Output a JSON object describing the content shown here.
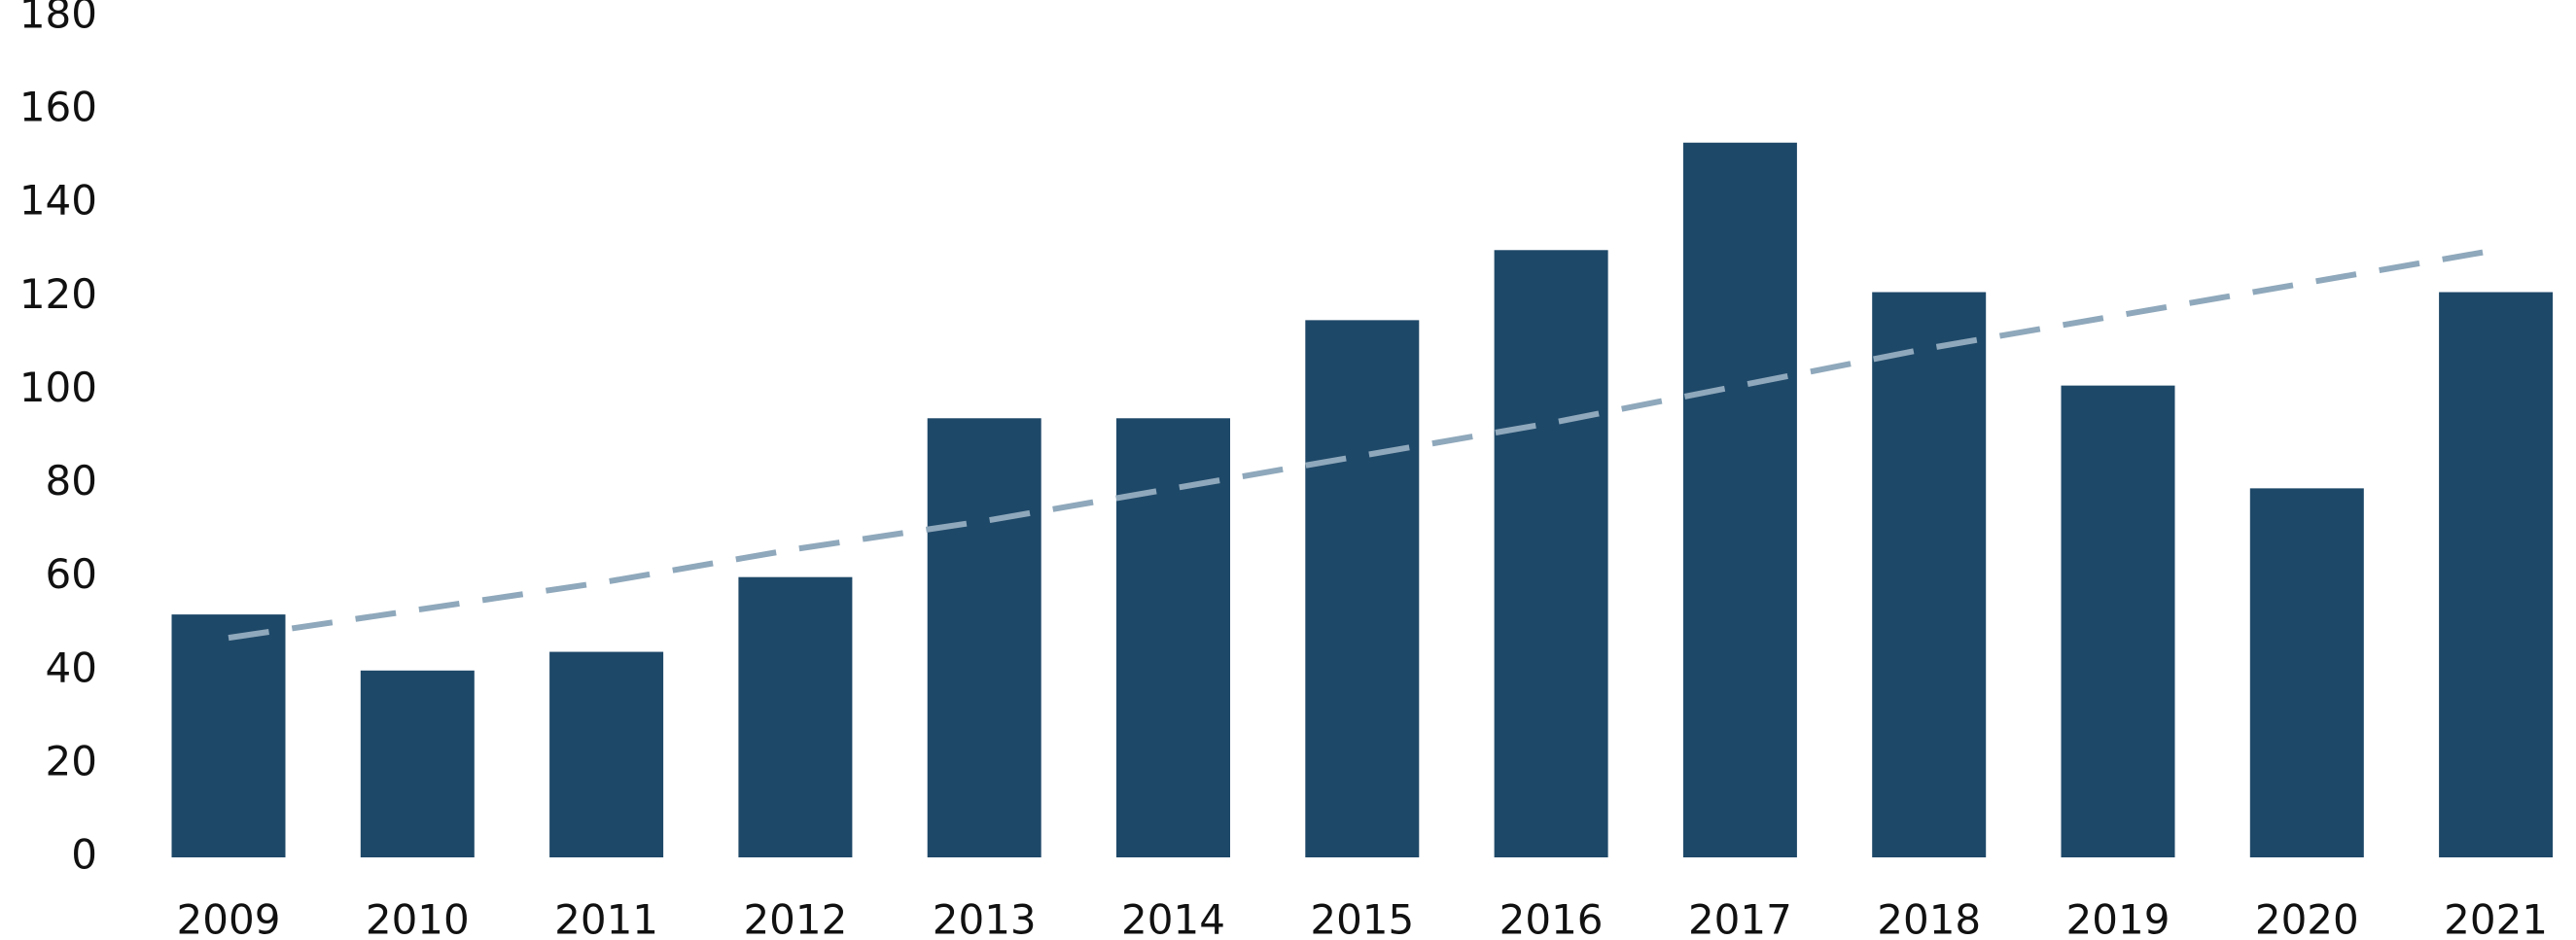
{
  "chart_data": {
    "type": "bar",
    "categories": [
      "2009",
      "2010",
      "2011",
      "2012",
      "2013",
      "2014",
      "2015",
      "2016",
      "2017",
      "2018",
      "2019",
      "2020",
      "2021"
    ],
    "values": [
      52,
      40,
      44,
      60,
      94,
      94,
      115,
      130,
      153,
      121,
      101,
      79,
      121
    ],
    "color": "#1e4868",
    "trend": {
      "color": "#8fa8bb",
      "values": [
        47,
        53,
        59,
        66,
        72,
        79,
        86,
        93,
        101,
        109,
        116,
        123,
        130
      ]
    },
    "ylim": [
      0,
      180
    ],
    "yticks": [
      0,
      20,
      40,
      60,
      80,
      100,
      120,
      140,
      160,
      180
    ],
    "grid": false
  }
}
